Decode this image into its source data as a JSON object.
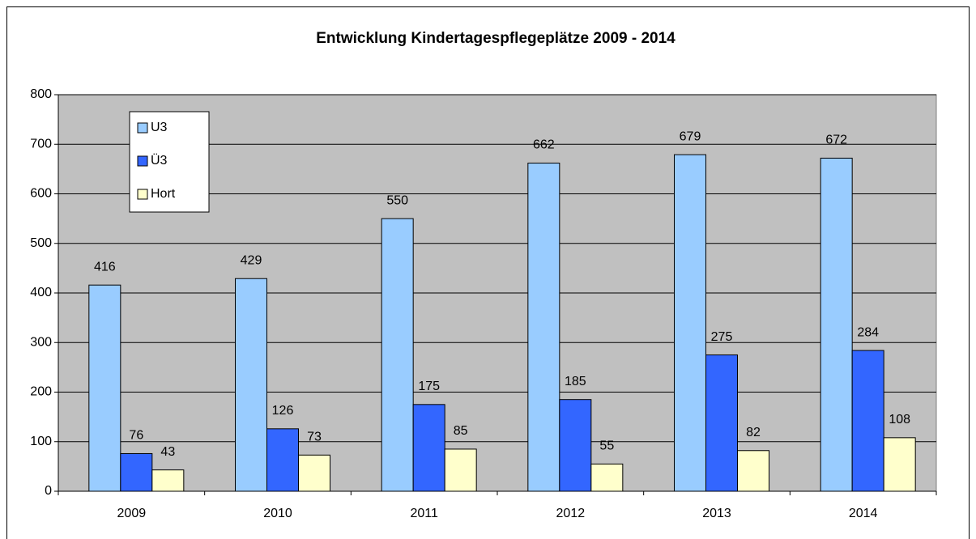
{
  "chart_data": {
    "type": "bar",
    "title": "Entwicklung Kindertagespflegeplätze 2009 - 2014",
    "categories": [
      "2009",
      "2010",
      "2011",
      "2012",
      "2013",
      "2014"
    ],
    "series": [
      {
        "name": "U3",
        "color": "#99ccff",
        "values": [
          416,
          429,
          550,
          662,
          679,
          672
        ]
      },
      {
        "name": "Ü3",
        "color": "#3366ff",
        "values": [
          76,
          126,
          175,
          185,
          275,
          284
        ]
      },
      {
        "name": "Hort",
        "color": "#ffffcc",
        "values": [
          43,
          73,
          85,
          55,
          82,
          108
        ]
      }
    ],
    "ylim": [
      0,
      800
    ],
    "yticks": [
      0,
      100,
      200,
      300,
      400,
      500,
      600,
      700,
      800
    ],
    "grid": true,
    "legend": "top-left"
  }
}
